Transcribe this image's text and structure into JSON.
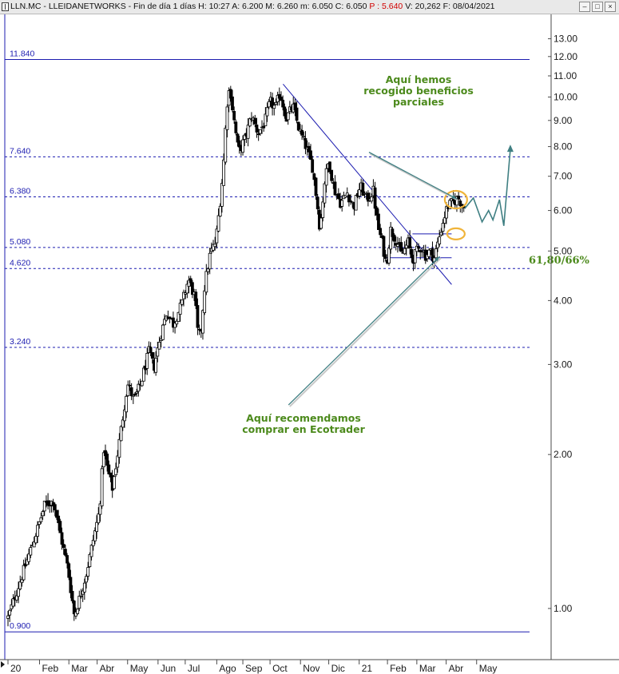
{
  "window": {
    "title_parts": [
      {
        "text": "LLN.MC - LLEIDANETWORKS - Fin de día 1 días  ",
        "cls": "lbl"
      },
      {
        "text": "H: 10:27  ",
        "cls": "lbl"
      },
      {
        "text": "A: 6.200  ",
        "cls": "lbl"
      },
      {
        "text": "M: 6.260  ",
        "cls": "lbl"
      },
      {
        "text": "m: 6.050  ",
        "cls": "lbl"
      },
      {
        "text": "C: 6.050  ",
        "cls": "lbl"
      },
      {
        "text": "P : 5.640  ",
        "cls": "red"
      },
      {
        "text": "V: 20,262  ",
        "cls": "lbl"
      },
      {
        "text": "F: 08/04/2021",
        "cls": "lbl"
      }
    ],
    "buttons": [
      "–",
      "□",
      "×"
    ]
  },
  "chart_data": {
    "type": "candlestick",
    "symbol": "LLN.MC",
    "name": "LLEIDANETWORKS",
    "period": "Fin de día 1 días",
    "quote": {
      "H": "10:27",
      "A": "6.200",
      "M": "6.260",
      "m": "6.050",
      "C": "6.050",
      "P": "5.640",
      "V": "20,262",
      "F": "08/04/2021"
    },
    "y_scale": "log",
    "ylim": [
      0.8,
      13.6
    ],
    "xlim": [
      -5,
      480
    ],
    "y_ticks": [
      {
        "v": 13,
        "l": "13.00"
      },
      {
        "v": 12,
        "l": "12.00"
      },
      {
        "v": 11,
        "l": "11.00"
      },
      {
        "v": 10,
        "l": "10.00"
      },
      {
        "v": 9,
        "l": "9.00"
      },
      {
        "v": 8,
        "l": "8.00"
      },
      {
        "v": 7,
        "l": "7.00"
      },
      {
        "v": 6,
        "l": "6.00"
      },
      {
        "v": 5,
        "l": "5.00"
      },
      {
        "v": 4,
        "l": "4.00"
      },
      {
        "v": 3,
        "l": "3.00"
      },
      {
        "v": 2,
        "l": "2.00"
      },
      {
        "v": 1,
        "l": "1.00"
      }
    ],
    "x_ticks": [
      {
        "day": 0,
        "l": "20"
      },
      {
        "day": 29,
        "l": "Feb"
      },
      {
        "day": 56,
        "l": "Mar"
      },
      {
        "day": 82,
        "l": "Abr"
      },
      {
        "day": 110,
        "l": "May"
      },
      {
        "day": 138,
        "l": "Jun"
      },
      {
        "day": 163,
        "l": "Jul"
      },
      {
        "day": 192,
        "l": "Ago"
      },
      {
        "day": 216,
        "l": "Sep"
      },
      {
        "day": 241,
        "l": "Oct"
      },
      {
        "day": 269,
        "l": "Nov"
      },
      {
        "day": 295,
        "l": "Dic"
      },
      {
        "day": 323,
        "l": "21"
      },
      {
        "day": 349,
        "l": "Feb"
      },
      {
        "day": 376,
        "l": "Mar"
      },
      {
        "day": 403,
        "l": "Abr"
      },
      {
        "day": 431,
        "l": "May"
      }
    ],
    "levels": [
      {
        "price": 11.84,
        "label": "11.840",
        "style": "solid"
      },
      {
        "price": 7.64,
        "label": "7.640",
        "style": "dashed"
      },
      {
        "price": 6.38,
        "label": "6.380",
        "style": "dashed"
      },
      {
        "price": 5.08,
        "label": "5.080",
        "style": "dashed"
      },
      {
        "price": 4.62,
        "label": "4.620",
        "style": "dashed"
      },
      {
        "price": 3.24,
        "label": "3.240",
        "style": "dashed"
      },
      {
        "price": 0.9,
        "label": "0.900",
        "style": "solid"
      }
    ],
    "trendlines": [
      {
        "from": [
          253,
          10.6
        ],
        "to": [
          408,
          4.3
        ]
      },
      {
        "from": [
          346,
          4.85
        ],
        "to": [
          408,
          4.85
        ]
      },
      {
        "from": [
          372,
          5.4
        ],
        "to": [
          408,
          5.4
        ]
      }
    ],
    "keypoints": [
      {
        "day": 0,
        "price": 0.96
      },
      {
        "day": 8,
        "price": 1.08
      },
      {
        "day": 18,
        "price": 1.25
      },
      {
        "day": 28,
        "price": 1.45
      },
      {
        "day": 34,
        "price": 1.6
      },
      {
        "day": 42,
        "price": 1.62
      },
      {
        "day": 48,
        "price": 1.4
      },
      {
        "day": 55,
        "price": 1.2
      },
      {
        "day": 61,
        "price": 0.97
      },
      {
        "day": 66,
        "price": 1.05
      },
      {
        "day": 72,
        "price": 1.17
      },
      {
        "day": 78,
        "price": 1.35
      },
      {
        "day": 84,
        "price": 1.55
      },
      {
        "day": 88,
        "price": 2.05
      },
      {
        "day": 92,
        "price": 1.85
      },
      {
        "day": 96,
        "price": 1.72
      },
      {
        "day": 100,
        "price": 1.95
      },
      {
        "day": 106,
        "price": 2.4
      },
      {
        "day": 110,
        "price": 2.75
      },
      {
        "day": 116,
        "price": 2.55
      },
      {
        "day": 122,
        "price": 2.75
      },
      {
        "day": 130,
        "price": 3.2
      },
      {
        "day": 134,
        "price": 2.95
      },
      {
        "day": 140,
        "price": 3.4
      },
      {
        "day": 146,
        "price": 3.8
      },
      {
        "day": 152,
        "price": 3.6
      },
      {
        "day": 160,
        "price": 3.95
      },
      {
        "day": 166,
        "price": 4.4
      },
      {
        "day": 172,
        "price": 4.05
      },
      {
        "day": 174,
        "price": 3.5
      },
      {
        "day": 177,
        "price": 3.4
      },
      {
        "day": 181,
        "price": 4.3
      },
      {
        "day": 186,
        "price": 4.95
      },
      {
        "day": 191,
        "price": 5.2
      },
      {
        "day": 196,
        "price": 6.5
      },
      {
        "day": 199,
        "price": 7.8
      },
      {
        "day": 201,
        "price": 9.6
      },
      {
        "day": 204,
        "price": 10.5
      },
      {
        "day": 207,
        "price": 9.3
      },
      {
        "day": 212,
        "price": 7.8
      },
      {
        "day": 218,
        "price": 8.3
      },
      {
        "day": 224,
        "price": 9.2
      },
      {
        "day": 230,
        "price": 8.5
      },
      {
        "day": 236,
        "price": 8.9
      },
      {
        "day": 241,
        "price": 9.8
      },
      {
        "day": 246,
        "price": 9.5
      },
      {
        "day": 250,
        "price": 10.2
      },
      {
        "day": 256,
        "price": 9.1
      },
      {
        "day": 262,
        "price": 9.6
      },
      {
        "day": 268,
        "price": 8.6
      },
      {
        "day": 274,
        "price": 8.0
      },
      {
        "day": 280,
        "price": 7.3
      },
      {
        "day": 284,
        "price": 6.3
      },
      {
        "day": 287,
        "price": 5.5
      },
      {
        "day": 291,
        "price": 6.8
      },
      {
        "day": 295,
        "price": 7.5
      },
      {
        "day": 300,
        "price": 6.6
      },
      {
        "day": 306,
        "price": 6.2
      },
      {
        "day": 312,
        "price": 6.5
      },
      {
        "day": 318,
        "price": 6.1
      },
      {
        "day": 324,
        "price": 6.7
      },
      {
        "day": 330,
        "price": 6.3
      },
      {
        "day": 336,
        "price": 6.55
      },
      {
        "day": 340,
        "price": 5.6
      },
      {
        "day": 344,
        "price": 5.2
      },
      {
        "day": 348,
        "price": 4.7
      },
      {
        "day": 352,
        "price": 5.5
      },
      {
        "day": 358,
        "price": 5.2
      },
      {
        "day": 362,
        "price": 4.9
      },
      {
        "day": 368,
        "price": 5.2
      },
      {
        "day": 372,
        "price": 4.8
      },
      {
        "day": 376,
        "price": 5.0
      },
      {
        "day": 380,
        "price": 5.1
      },
      {
        "day": 384,
        "price": 4.9
      },
      {
        "day": 388,
        "price": 5.0
      },
      {
        "day": 392,
        "price": 4.85
      },
      {
        "day": 396,
        "price": 5.25
      },
      {
        "day": 400,
        "price": 5.7
      },
      {
        "day": 404,
        "price": 6.1
      },
      {
        "day": 408,
        "price": 6.2
      },
      {
        "day": 414,
        "price": 6.35
      },
      {
        "day": 420,
        "price": 6.05
      }
    ],
    "projection": [
      [
        420,
        6.05
      ],
      [
        428,
        6.35
      ],
      [
        436,
        5.7
      ],
      [
        442,
        6.0
      ],
      [
        446,
        5.75
      ],
      [
        452,
        6.3
      ],
      [
        456,
        5.6
      ],
      [
        462,
        7.9
      ]
    ],
    "highlights": [
      {
        "day": 412,
        "price": 6.3,
        "rx": 14,
        "ry": 11
      },
      {
        "day": 412,
        "price": 5.4,
        "rx": 11,
        "ry": 7
      }
    ],
    "annotations": [
      {
        "lines": [
          "Aquí hemos",
          "recogido beneficios",
          "parciales"
        ],
        "pointer_from": [
          332,
          7.8
        ],
        "pointer_to": [
          413,
          6.32
        ]
      },
      {
        "lines": [
          "Aquí recomendamos",
          "comprar en Ecotrader"
        ],
        "pointer_from": [
          258,
          2.5
        ],
        "pointer_to": [
          397,
          4.88
        ]
      },
      {
        "lines": [
          "61,80/66%"
        ],
        "pointer_from": null,
        "pointer_to": null
      }
    ]
  }
}
